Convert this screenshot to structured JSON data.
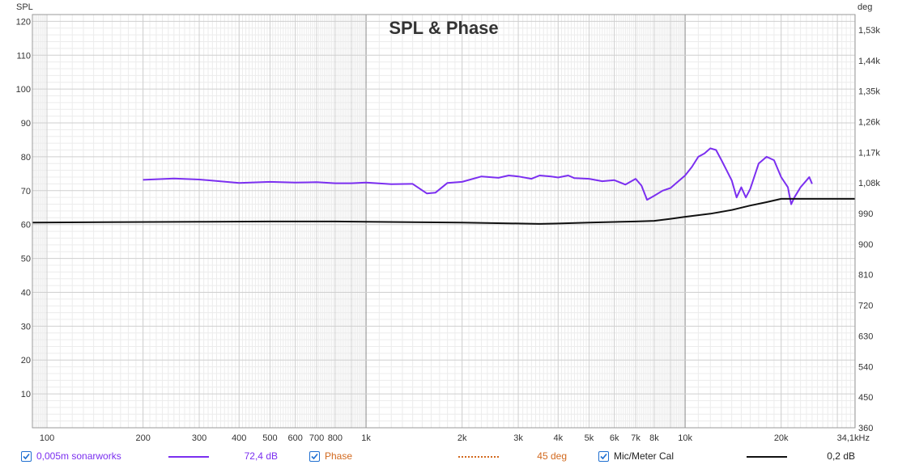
{
  "chart_data": {
    "type": "line",
    "title": "SPL & Phase",
    "ylabel_left": "SPL",
    "ylabel_right": "deg",
    "x_scale": "log",
    "xlim": [
      90,
      34100
    ],
    "ylim_left": [
      0,
      122
    ],
    "ylim_right": [
      360,
      1575
    ],
    "x_ticks": [
      {
        "v": 100,
        "label": "100"
      },
      {
        "v": 200,
        "label": "200"
      },
      {
        "v": 300,
        "label": "300"
      },
      {
        "v": 400,
        "label": "400"
      },
      {
        "v": 500,
        "label": "500"
      },
      {
        "v": 600,
        "label": "600"
      },
      {
        "v": 700,
        "label": "700"
      },
      {
        "v": 800,
        "label": "800"
      },
      {
        "v": 1000,
        "label": "1k"
      },
      {
        "v": 2000,
        "label": "2k"
      },
      {
        "v": 3000,
        "label": "3k"
      },
      {
        "v": 4000,
        "label": "4k"
      },
      {
        "v": 5000,
        "label": "5k"
      },
      {
        "v": 6000,
        "label": "6k"
      },
      {
        "v": 7000,
        "label": "7k"
      },
      {
        "v": 8000,
        "label": "8k"
      },
      {
        "v": 10000,
        "label": "10k"
      },
      {
        "v": 20000,
        "label": "20k"
      },
      {
        "v": 34100,
        "label": "34,1kHz"
      }
    ],
    "y_ticks_left": [
      {
        "v": 10,
        "label": "10"
      },
      {
        "v": 20,
        "label": "20"
      },
      {
        "v": 30,
        "label": "30"
      },
      {
        "v": 40,
        "label": "40"
      },
      {
        "v": 50,
        "label": "50"
      },
      {
        "v": 60,
        "label": "60"
      },
      {
        "v": 70,
        "label": "70"
      },
      {
        "v": 80,
        "label": "80"
      },
      {
        "v": 90,
        "label": "90"
      },
      {
        "v": 100,
        "label": "100"
      },
      {
        "v": 110,
        "label": "110"
      },
      {
        "v": 120,
        "label": "120"
      }
    ],
    "y_ticks_right": [
      {
        "v": 360,
        "label": "360"
      },
      {
        "v": 450,
        "label": "450"
      },
      {
        "v": 540,
        "label": "540"
      },
      {
        "v": 630,
        "label": "630"
      },
      {
        "v": 720,
        "label": "720"
      },
      {
        "v": 810,
        "label": "810"
      },
      {
        "v": 900,
        "label": "900"
      },
      {
        "v": 990,
        "label": "990"
      },
      {
        "v": 1080,
        "label": "1,08k"
      },
      {
        "v": 1170,
        "label": "1,17k"
      },
      {
        "v": 1260,
        "label": "1,26k"
      },
      {
        "v": 1350,
        "label": "1,35k"
      },
      {
        "v": 1440,
        "label": "1,44k"
      },
      {
        "v": 1530,
        "label": "1,53k"
      }
    ],
    "series": [
      {
        "name": "0,005m sonarworks",
        "color": "#7b2ff0",
        "x": [
          200,
          250,
          300,
          400,
          500,
          600,
          700,
          800,
          900,
          1000,
          1200,
          1400,
          1550,
          1650,
          1800,
          2000,
          2300,
          2600,
          2800,
          3000,
          3300,
          3500,
          3800,
          4000,
          4300,
          4500,
          5000,
          5500,
          6000,
          6500,
          7000,
          7300,
          7600,
          8000,
          8500,
          9000,
          10000,
          10500,
          11000,
          11500,
          12000,
          12500,
          13000,
          13500,
          14000,
          14500,
          15000,
          15500,
          16000,
          17000,
          18000,
          19000,
          20000,
          21000,
          21500,
          22000,
          23000,
          24000,
          24500,
          25000
        ],
        "y": [
          73.2,
          73.6,
          73.3,
          72.3,
          72.6,
          72.4,
          72.5,
          72.2,
          72.2,
          72.4,
          71.9,
          72.0,
          69.2,
          69.4,
          72.3,
          72.6,
          74.2,
          73.8,
          74.5,
          74.2,
          73.5,
          74.5,
          74.2,
          73.9,
          74.5,
          73.7,
          73.5,
          72.8,
          73.1,
          71.8,
          73.5,
          71.5,
          67.3,
          68.5,
          70.0,
          70.8,
          74.5,
          77.0,
          80.0,
          81.0,
          82.5,
          82.0,
          79.0,
          76.0,
          73.0,
          68.0,
          71.0,
          68.0,
          70.5,
          78.0,
          80.0,
          79.0,
          74.0,
          71.0,
          66.0,
          68.0,
          71.0,
          73.0,
          74.0,
          72.0
        ]
      },
      {
        "name": "Phase",
        "color": "#d2691e",
        "x": [],
        "y": []
      },
      {
        "name": "Mic/Meter Cal",
        "color": "#111111",
        "x": [
          90,
          150,
          300,
          500,
          800,
          1000,
          2000,
          3000,
          3500,
          4000,
          5000,
          7000,
          8000,
          9000,
          10000,
          12000,
          14000,
          16000,
          18000,
          20000,
          25000,
          34100
        ],
        "y": [
          60.6,
          60.7,
          60.8,
          60.9,
          60.9,
          60.8,
          60.6,
          60.3,
          60.2,
          60.3,
          60.6,
          60.9,
          61.1,
          61.7,
          62.3,
          63.2,
          64.3,
          65.6,
          66.6,
          67.6,
          67.6,
          67.6
        ]
      }
    ]
  },
  "legend": [
    {
      "label": "0,005m sonarworks",
      "value": "72,4 dB",
      "color": "#7b2ff0",
      "style": "solid",
      "checked": true
    },
    {
      "label": "Phase",
      "value": "45 deg",
      "color": "#d2691e",
      "style": "dotted",
      "checked": true
    },
    {
      "label": "Mic/Meter Cal",
      "value": "0,2 dB",
      "color": "#111111",
      "style": "solid",
      "checked": true
    }
  ]
}
